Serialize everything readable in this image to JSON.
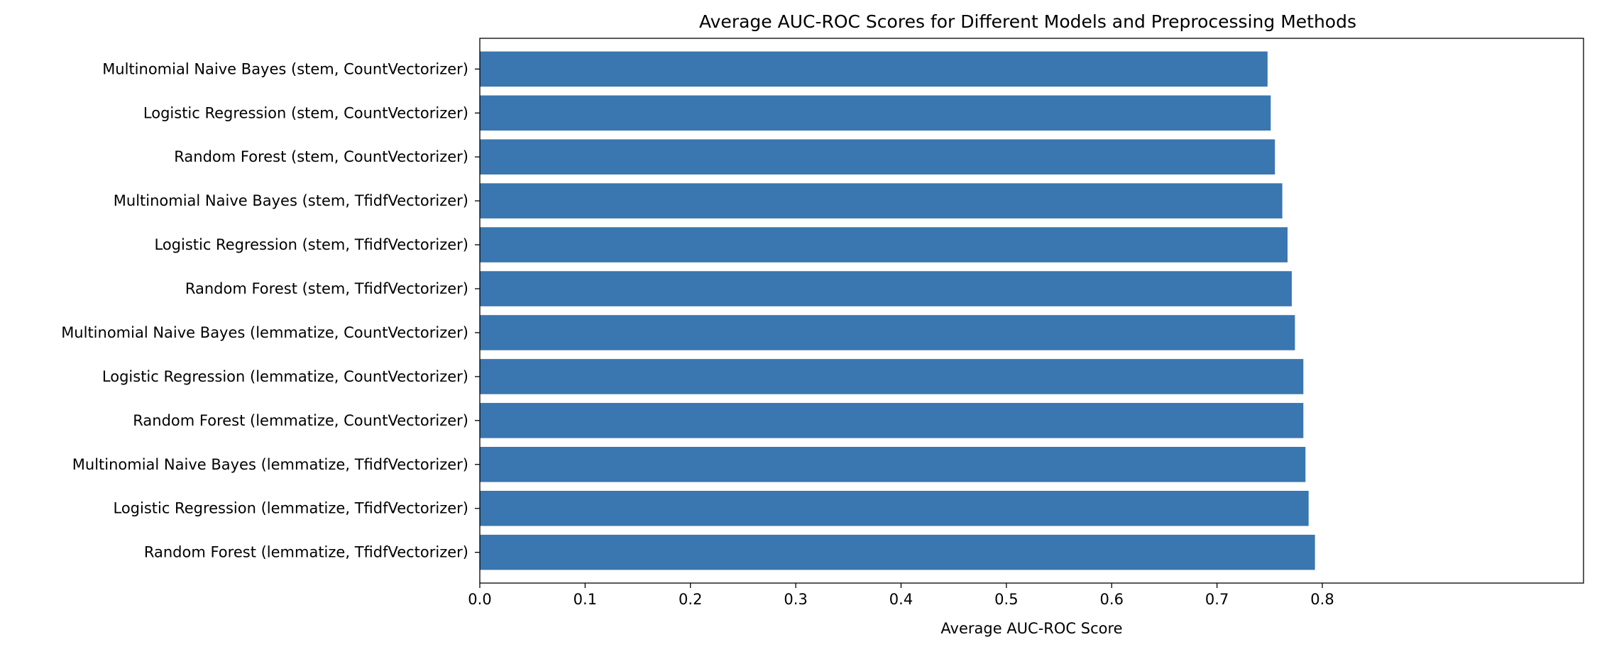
{
  "chart_data": {
    "type": "bar",
    "orientation": "horizontal",
    "title": "Average AUC-ROC Scores for Different Models and Preprocessing Methods",
    "xlabel": "Average AUC-ROC Score",
    "ylabel": "",
    "xlim": [
      0,
      0.835
    ],
    "xticks": [
      0.0,
      0.1,
      0.2,
      0.3,
      0.4,
      0.5,
      0.6,
      0.7,
      0.8
    ],
    "xtick_labels": [
      "0.0",
      "0.1",
      "0.2",
      "0.3",
      "0.4",
      "0.5",
      "0.6",
      "0.7",
      "0.8"
    ],
    "grid": false,
    "bar_color": "#3a76af",
    "categories": [
      "Multinomial Naive Bayes (stem, CountVectorizer)",
      "Logistic Regression (stem, CountVectorizer)",
      "Random Forest (stem, CountVectorizer)",
      "Multinomial Naive Bayes (stem, TfidfVectorizer)",
      "Logistic Regression (stem, TfidfVectorizer)",
      "Random Forest (stem, TfidfVectorizer)",
      "Multinomial Naive Bayes (lemmatize, CountVectorizer)",
      "Logistic Regression (lemmatize, CountVectorizer)",
      "Random Forest (lemmatize, CountVectorizer)",
      "Multinomial Naive Bayes (lemmatize, TfidfVectorizer)",
      "Logistic Regression (lemmatize, TfidfVectorizer)",
      "Random Forest (lemmatize, TfidfVectorizer)"
    ],
    "values": [
      0.748,
      0.751,
      0.755,
      0.762,
      0.767,
      0.771,
      0.774,
      0.782,
      0.782,
      0.784,
      0.787,
      0.793
    ]
  }
}
